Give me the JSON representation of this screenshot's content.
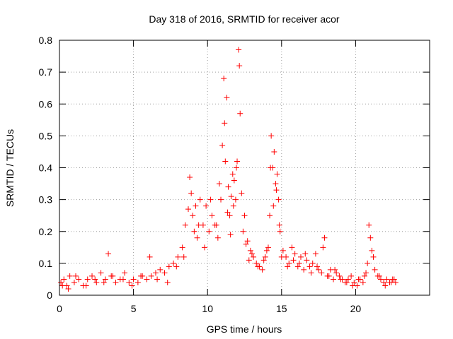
{
  "chart_data": {
    "type": "scatter",
    "title": "Day 318 of 2016, SRMTID for receiver acor",
    "xlabel": "GPS time / hours",
    "ylabel": "SRMTID / TECUs",
    "xlim": [
      0,
      25
    ],
    "ylim": [
      0,
      0.8
    ],
    "x_ticks": [
      0,
      5,
      10,
      15,
      20
    ],
    "x_tick_labels": [
      "0",
      "5",
      "10",
      "15",
      "20"
    ],
    "y_ticks": [
      0,
      0.1,
      0.2,
      0.3,
      0.4,
      0.5,
      0.6,
      0.7,
      0.8
    ],
    "y_tick_labels": [
      "0",
      "0.1",
      "0.2",
      "0.3",
      "0.4",
      "0.5",
      "0.6",
      "0.7",
      "0.8"
    ],
    "grid": true,
    "marker": "+",
    "marker_color": "#ff0000",
    "series": [
      {
        "name": "SRMTID",
        "x": [
          0.1,
          0.3,
          0.5,
          0.7,
          1.0,
          1.3,
          1.6,
          1.9,
          2.2,
          2.5,
          2.8,
          3.1,
          3.5,
          3.8,
          4.1,
          4.4,
          4.7,
          5.0,
          5.3,
          5.6,
          5.9,
          6.2,
          6.5,
          6.8,
          7.1,
          7.4,
          7.7,
          8.0,
          8.3,
          8.5,
          8.7,
          8.8,
          8.9,
          9.0,
          9.1,
          9.3,
          9.5,
          9.7,
          9.9,
          10.1,
          10.3,
          10.5,
          10.7,
          10.9,
          11.0,
          11.1,
          11.2,
          11.3,
          11.4,
          11.5,
          11.6,
          11.7,
          11.8,
          11.9,
          12.0,
          12.1,
          12.2,
          12.3,
          12.5,
          12.7,
          12.9,
          13.1,
          13.3,
          13.5,
          13.7,
          13.9,
          14.1,
          14.2,
          14.3,
          14.4,
          14.5,
          14.6,
          14.7,
          14.8,
          14.9,
          15.1,
          15.3,
          15.5,
          15.7,
          15.9,
          16.1,
          16.3,
          16.5,
          16.7,
          16.9,
          17.1,
          17.3,
          17.5,
          17.7,
          17.9,
          18.1,
          18.3,
          18.5,
          18.7,
          18.9,
          19.1,
          19.3,
          19.5,
          19.7,
          19.9,
          20.1,
          20.3,
          20.5,
          20.7,
          20.8,
          20.9,
          21.0,
          21.1,
          21.3,
          21.5,
          21.7,
          21.9,
          22.1,
          22.3,
          22.5,
          22.7,
          0.2,
          0.6,
          1.1,
          1.8,
          2.4,
          3.0,
          3.3,
          3.6,
          4.3,
          4.9,
          5.5,
          6.1,
          6.6,
          7.3,
          7.9,
          8.4,
          9.2,
          9.4,
          9.8,
          10.2,
          10.6,
          10.8,
          11.15,
          11.35,
          11.55,
          11.75,
          11.95,
          12.15,
          12.4,
          12.6,
          12.8,
          13.0,
          13.4,
          13.8,
          14.0,
          14.25,
          14.45,
          14.65,
          14.85,
          15.0,
          15.4,
          15.8,
          16.2,
          16.6,
          17.0,
          17.4,
          17.8,
          18.2,
          18.6,
          19.0,
          19.4,
          19.8,
          20.2,
          20.6,
          21.2,
          21.6,
          22.0,
          22.4,
          22.6
        ],
        "values": [
          0.04,
          0.05,
          0.03,
          0.06,
          0.04,
          0.05,
          0.03,
          0.05,
          0.06,
          0.04,
          0.07,
          0.05,
          0.06,
          0.04,
          0.05,
          0.07,
          0.04,
          0.05,
          0.04,
          0.06,
          0.05,
          0.06,
          0.07,
          0.08,
          0.07,
          0.09,
          0.1,
          0.12,
          0.15,
          0.22,
          0.27,
          0.37,
          0.32,
          0.25,
          0.2,
          0.18,
          0.3,
          0.22,
          0.28,
          0.2,
          0.25,
          0.22,
          0.18,
          0.3,
          0.47,
          0.68,
          0.42,
          0.62,
          0.34,
          0.25,
          0.31,
          0.38,
          0.36,
          0.3,
          0.42,
          0.77,
          0.57,
          0.32,
          0.25,
          0.17,
          0.14,
          0.12,
          0.1,
          0.09,
          0.08,
          0.12,
          0.15,
          0.25,
          0.5,
          0.4,
          0.45,
          0.35,
          0.38,
          0.3,
          0.2,
          0.14,
          0.12,
          0.1,
          0.15,
          0.13,
          0.09,
          0.12,
          0.08,
          0.11,
          0.09,
          0.1,
          0.13,
          0.08,
          0.07,
          0.18,
          0.06,
          0.08,
          0.05,
          0.07,
          0.06,
          0.05,
          0.04,
          0.05,
          0.06,
          0.04,
          0.03,
          0.05,
          0.04,
          0.07,
          0.1,
          0.22,
          0.18,
          0.14,
          0.08,
          0.06,
          0.05,
          0.04,
          0.05,
          0.04,
          0.05,
          0.04,
          0.03,
          0.02,
          0.06,
          0.03,
          0.05,
          0.04,
          0.13,
          0.06,
          0.05,
          0.03,
          0.06,
          0.12,
          0.05,
          0.04,
          0.09,
          0.12,
          0.28,
          0.22,
          0.15,
          0.3,
          0.22,
          0.35,
          0.54,
          0.26,
          0.19,
          0.28,
          0.4,
          0.72,
          0.2,
          0.16,
          0.11,
          0.13,
          0.09,
          0.11,
          0.14,
          0.4,
          0.28,
          0.33,
          0.22,
          0.12,
          0.09,
          0.11,
          0.1,
          0.13,
          0.07,
          0.09,
          0.15,
          0.06,
          0.08,
          0.05,
          0.04,
          0.03,
          0.05,
          0.06,
          0.12,
          0.06,
          0.03,
          0.04,
          0.05
        ]
      }
    ]
  }
}
